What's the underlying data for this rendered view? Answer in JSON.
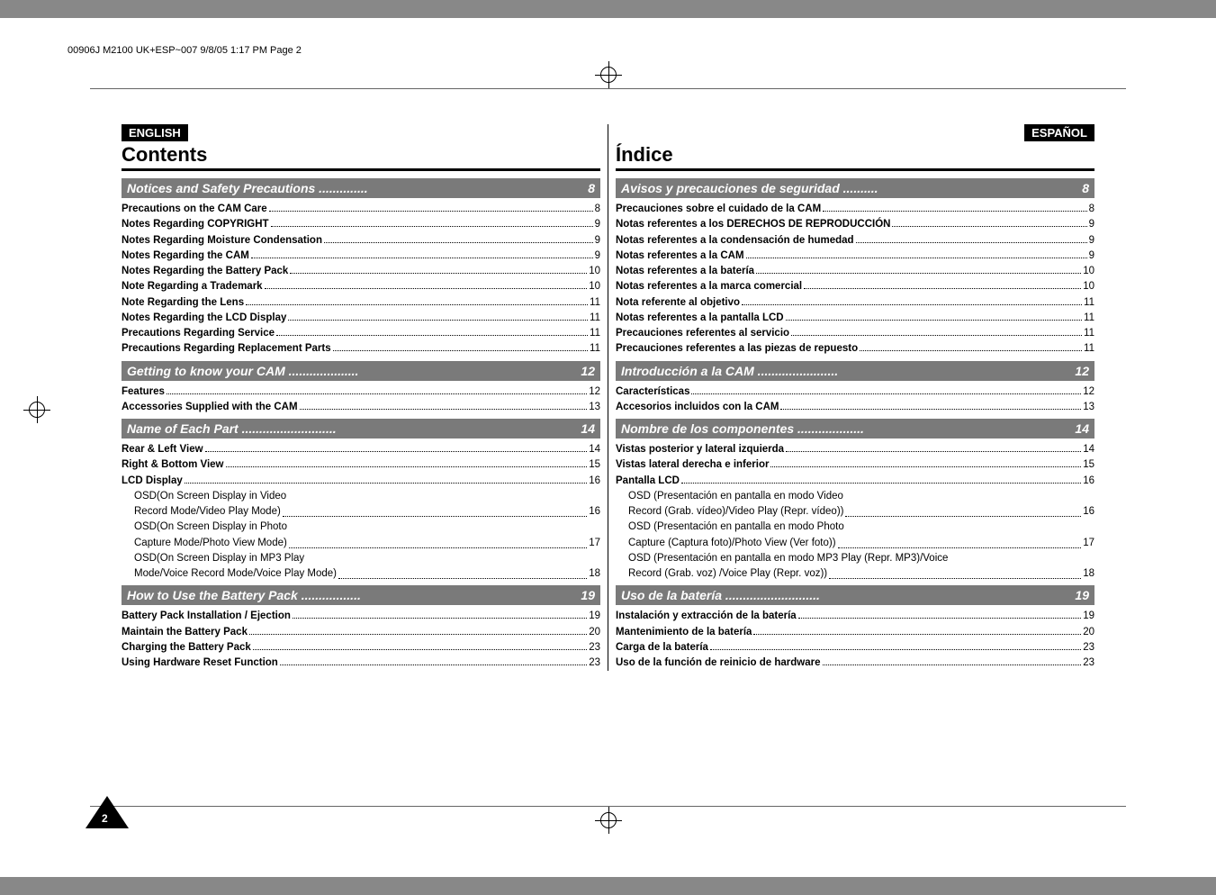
{
  "header_line": "00906J M2100 UK+ESP~007  9/8/05 1:17 PM  Page 2",
  "page_number": "2",
  "left": {
    "lang_badge": "ENGLISH",
    "title": "Contents",
    "sections": [
      {
        "heading": "Notices and Safety Precautions",
        "heading_page": "8",
        "entries": [
          {
            "label": "Precautions on the CAM Care",
            "page": "8",
            "bold": true
          },
          {
            "label": "Notes Regarding COPYRIGHT",
            "page": "9",
            "bold": true
          },
          {
            "label": "Notes Regarding Moisture Condensation",
            "page": "9",
            "bold": true
          },
          {
            "label": "Notes Regarding the CAM",
            "page": "9",
            "bold": true
          },
          {
            "label": "Notes Regarding the Battery Pack",
            "page": "10",
            "bold": true
          },
          {
            "label": "Note Regarding a Trademark",
            "page": "10",
            "bold": true
          },
          {
            "label": "Note Regarding the Lens",
            "page": "11",
            "bold": true
          },
          {
            "label": "Notes Regarding the LCD Display",
            "page": "11",
            "bold": true
          },
          {
            "label": "Precautions Regarding Service",
            "page": "11",
            "bold": true
          },
          {
            "label": "Precautions Regarding Replacement Parts",
            "page": "11",
            "bold": true
          }
        ]
      },
      {
        "heading": "Getting to know your CAM",
        "heading_page": "12",
        "entries": [
          {
            "label": "Features",
            "page": "12",
            "bold": true
          },
          {
            "label": "Accessories Supplied with the CAM",
            "page": "13",
            "bold": true
          }
        ]
      },
      {
        "heading": "Name of Each Part",
        "heading_page": "14",
        "entries": [
          {
            "label": "Rear & Left View",
            "page": "14",
            "bold": true
          },
          {
            "label": "Right & Bottom View",
            "page": "15",
            "bold": true
          },
          {
            "label": "LCD Display",
            "page": "16",
            "bold": true
          },
          {
            "label": "OSD(On Screen Display in Video Record Mode/Video Play Mode)",
            "page": "16",
            "sub": true
          },
          {
            "label": "OSD(On Screen Display in Photo Capture Mode/Photo View Mode)",
            "page": "17",
            "sub": true
          },
          {
            "label": "OSD(On Screen Display in MP3 Play Mode/Voice Record Mode/Voice Play Mode)",
            "page": "18",
            "sub": true
          }
        ]
      },
      {
        "heading": "How to Use the Battery Pack",
        "heading_page": "19",
        "entries": [
          {
            "label": "Battery Pack Installation / Ejection",
            "page": "19",
            "bold": true
          },
          {
            "label": "Maintain the Battery Pack",
            "page": "20",
            "bold": true
          },
          {
            "label": "Charging the Battery Pack",
            "page": "23",
            "bold": true
          },
          {
            "label": "Using Hardware Reset Function",
            "page": "23",
            "bold": true
          }
        ]
      }
    ]
  },
  "right": {
    "lang_badge": "ESPAÑOL",
    "title": "Índice",
    "sections": [
      {
        "heading": "Avisos y precauciones de seguridad",
        "heading_page": "8",
        "entries": [
          {
            "label": "Precauciones sobre el cuidado de la CAM",
            "page": "8",
            "bold": true
          },
          {
            "label": "Notas referentes a los DERECHOS DE REPRODUCCIÓN",
            "page": "9",
            "bold": true
          },
          {
            "label": "Notas referentes a la condensación de humedad",
            "page": "9",
            "bold": true
          },
          {
            "label": "Notas referentes a la CAM",
            "page": "9",
            "bold": true
          },
          {
            "label": "Notas referentes a la batería",
            "page": "10",
            "bold": true
          },
          {
            "label": "Notas referentes a la marca comercial",
            "page": "10",
            "bold": true
          },
          {
            "label": "Nota referente al objetivo",
            "page": "11",
            "bold": true
          },
          {
            "label": "Notas referentes a la pantalla LCD",
            "page": "11",
            "bold": true
          },
          {
            "label": "Precauciones referentes al servicio",
            "page": "11",
            "bold": true
          },
          {
            "label": "Precauciones referentes a las piezas de repuesto",
            "page": "11",
            "bold": true
          }
        ]
      },
      {
        "heading": "Introducción a la CAM",
        "heading_page": "12",
        "entries": [
          {
            "label": "Características",
            "page": "12",
            "bold": true
          },
          {
            "label": "Accesorios incluidos con la CAM",
            "page": "13",
            "bold": true
          }
        ]
      },
      {
        "heading": "Nombre de los componentes",
        "heading_page": "14",
        "entries": [
          {
            "label": "Vistas posterior y lateral izquierda",
            "page": "14",
            "bold": true
          },
          {
            "label": "Vistas lateral derecha e inferior",
            "page": "15",
            "bold": true
          },
          {
            "label": "Pantalla LCD",
            "page": "16",
            "bold": true
          },
          {
            "label": "OSD (Presentación en pantalla en modo Video Record (Grab. vídeo)/Video Play (Repr. vídeo))",
            "page": "16",
            "sub": true
          },
          {
            "label": "OSD (Presentación en pantalla en modo Photo Capture (Captura foto)/Photo View (Ver foto))",
            "page": "17",
            "sub": true
          },
          {
            "label": "OSD (Presentación en pantalla en modo MP3 Play (Repr. MP3)/Voice Record (Grab. voz) /Voice Play (Repr. voz))",
            "page": "18",
            "sub": true
          }
        ]
      },
      {
        "heading": "Uso de la batería",
        "heading_page": "19",
        "entries": [
          {
            "label": "Instalación y extracción de la batería",
            "page": "19",
            "bold": true
          },
          {
            "label": "Mantenimiento de la batería",
            "page": "20",
            "bold": true
          },
          {
            "label": "Carga de la batería",
            "page": "23",
            "bold": true
          },
          {
            "label": "Uso de la función de reinicio de hardware",
            "page": "23",
            "bold": true
          }
        ]
      }
    ]
  }
}
